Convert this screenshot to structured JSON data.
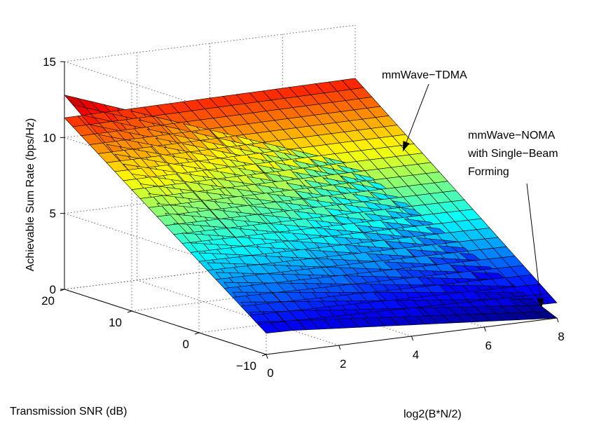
{
  "chart_data": {
    "type": "surface",
    "title": "",
    "xlabel": "log2(B*N/2)",
    "ylabel": "Transmission SNR (dB)",
    "zlabel": "Achievable Sum Rate (bps/Hz)",
    "xlim": [
      0,
      8
    ],
    "ylim": [
      -10,
      20
    ],
    "zlim": [
      0,
      15
    ],
    "xticks": [
      "0",
      "2",
      "4",
      "6",
      "8"
    ],
    "yticks": [
      "−10",
      "0",
      "10",
      "20"
    ],
    "zticks": [
      "0",
      "5",
      "10",
      "15"
    ],
    "grid": true,
    "colormap": "jet",
    "series": [
      {
        "x": [
          0,
          8
        ],
        "y": [
          -10,
          20
        ],
        "z_at_corners": {
          "x0_y-10": 1.4,
          "x0_y20": 11.3,
          "x8_y-10": 1.0,
          "x8_y20": 11.5
        }
      },
      {
        "x": [
          0,
          8
        ],
        "y": [
          -10,
          20
        ],
        "z_at_corners": {
          "x0_y-10": 1.5,
          "x0_y20": 12.8,
          "x8_y-10": 0.0,
          "x8_y20": 5.8
        }
      }
    ],
    "annotations": [
      {
        "text": "mmWave−TDMA",
        "lines": [
          "mmWave−TDMA"
        ]
      },
      {
        "text": "mmWave−NOMA with Single−Beam Forming",
        "lines": [
          "mmWave−NOMA",
          "with Single−Beam",
          "Forming"
        ]
      }
    ]
  }
}
